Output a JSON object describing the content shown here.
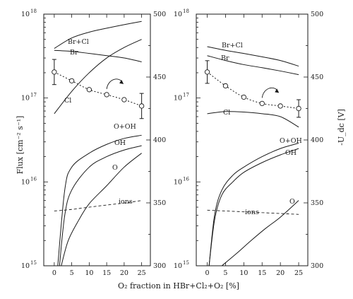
{
  "figure": {
    "xlabel": "O₂ fraction in HBr+Cl₂+O₂ [%]",
    "ylabel_left": "Flux [cm⁻² s⁻¹]",
    "ylabel_right": "-U_dc [V]"
  },
  "chart_data": [
    {
      "type": "line",
      "panel": "left",
      "x_ticks": [
        0,
        5,
        10,
        15,
        20,
        25
      ],
      "xlim": [
        -3,
        27.5
      ],
      "y_left": {
        "scale": "log",
        "range": [
          1000000000000000.0,
          1e+18
        ],
        "tick_labels": [
          "10",
          "10",
          "10",
          "10"
        ],
        "tick_exponents": [
          "15",
          "16",
          "17",
          "18"
        ]
      },
      "y_right": {
        "range": [
          300,
          500
        ],
        "tick_labels": [
          "300",
          "350",
          "400",
          "450",
          "500"
        ]
      },
      "series": [
        {
          "name": "Br+Cl",
          "axis": "left",
          "x": [
            0,
            5,
            10,
            15,
            20,
            25
          ],
          "y": [
            3.9e+17,
            5.2e+17,
            6.1e+17,
            6.8e+17,
            7.5e+17,
            8.2e+17
          ]
        },
        {
          "name": "Br",
          "axis": "left",
          "x": [
            0,
            5,
            10,
            15,
            20,
            25
          ],
          "y": [
            3.7e+17,
            3.6e+17,
            3.4e+17,
            3.2e+17,
            3e+17,
            2.7e+17
          ]
        },
        {
          "name": "Cl",
          "axis": "left",
          "x": [
            0,
            5,
            10,
            15,
            20,
            25
          ],
          "y": [
            6.5e+16,
            1.2e+17,
            2e+17,
            3e+17,
            4e+17,
            5e+17
          ]
        },
        {
          "name": "O+OH",
          "axis": "left",
          "x": [
            1,
            3,
            5,
            10,
            15,
            20,
            25
          ],
          "y": [
            1000000000000000.0,
            8000000000000000.0,
            1.5e+16,
            2.2e+16,
            2.8e+16,
            3.3e+16,
            3.6e+16
          ]
        },
        {
          "name": "OH",
          "axis": "left",
          "x": [
            1.5,
            3,
            5,
            10,
            15,
            20,
            25
          ],
          "y": [
            1000000000000000.0,
            4000000000000000.0,
            8000000000000000.0,
            1.5e+16,
            2e+16,
            2.4e+16,
            2.7e+16
          ]
        },
        {
          "name": "O",
          "axis": "left",
          "x": [
            2,
            4,
            7,
            10,
            15,
            20,
            25
          ],
          "y": [
            1000000000000000.0,
            2000000000000000.0,
            3500000000000000.0,
            5500000000000000.0,
            9000000000000000.0,
            1.5e+16,
            2.2e+16
          ]
        },
        {
          "name": "ions",
          "axis": "left",
          "x": [
            0,
            5,
            10,
            15,
            20,
            25
          ],
          "y": [
            4500000000000000.0,
            4700000000000000.0,
            5000000000000000.0,
            5300000000000000.0,
            5600000000000000.0,
            6000000000000000.0
          ]
        },
        {
          "name": "-U_dc",
          "axis": "right",
          "x": [
            0,
            5,
            10,
            15,
            20,
            25
          ],
          "y": [
            454,
            447,
            440,
            436,
            432,
            427
          ],
          "err": [
            10,
            0,
            0,
            0,
            0,
            10
          ]
        }
      ]
    },
    {
      "type": "line",
      "panel": "right",
      "x_ticks": [
        0,
        5,
        10,
        15,
        20,
        25
      ],
      "xlim": [
        -3,
        27.5
      ],
      "y_left": {
        "scale": "log",
        "range": [
          1000000000000000.0,
          1e+18
        ],
        "tick_labels": [
          "10",
          "10",
          "10",
          "10"
        ],
        "tick_exponents": [
          "15",
          "16",
          "17",
          "18"
        ]
      },
      "y_right": {
        "range": [
          300,
          500
        ],
        "tick_labels": [
          "300",
          "350",
          "400",
          "450",
          "500"
        ]
      },
      "series": [
        {
          "name": "Br+Cl",
          "axis": "left",
          "x": [
            0,
            5,
            10,
            15,
            20,
            25
          ],
          "y": [
            4.1e+17,
            3.7e+17,
            3.4e+17,
            3.1e+17,
            2.8e+17,
            2.4e+17
          ]
        },
        {
          "name": "Br",
          "axis": "left",
          "x": [
            0,
            5,
            10,
            15,
            20,
            25
          ],
          "y": [
            3.2e+17,
            2.8e+17,
            2.5e+17,
            2.3e+17,
            2.1e+17,
            1.9e+17
          ]
        },
        {
          "name": "Cl",
          "axis": "left",
          "x": [
            0,
            5,
            10,
            15,
            20,
            25
          ],
          "y": [
            6.5e+16,
            6.9e+16,
            6.8e+16,
            6.5e+16,
            6e+16,
            4.5e+16
          ]
        },
        {
          "name": "O+OH",
          "axis": "left",
          "x": [
            0.5,
            2,
            4,
            7,
            10,
            15,
            20,
            25
          ],
          "y": [
            1000000000000000.0,
            4000000000000000.0,
            8000000000000000.0,
            1.2e+16,
            1.5e+16,
            2e+16,
            2.5e+16,
            2.9e+16
          ]
        },
        {
          "name": "OH",
          "axis": "left",
          "x": [
            0.5,
            2,
            4,
            7,
            10,
            15,
            20,
            25
          ],
          "y": [
            1000000000000000.0,
            3500000000000000.0,
            7000000000000000.0,
            1e+16,
            1.3e+16,
            1.7e+16,
            2.1e+16,
            2.5e+16
          ]
        },
        {
          "name": "O",
          "axis": "left",
          "x": [
            4,
            8,
            12,
            16,
            20,
            25
          ],
          "y": [
            1000000000000000.0,
            1400000000000000.0,
            2000000000000000.0,
            2800000000000000.0,
            3800000000000000.0,
            6000000000000000.0
          ]
        },
        {
          "name": "ions",
          "axis": "left",
          "x": [
            0,
            5,
            10,
            15,
            20,
            25
          ],
          "y": [
            4600000000000000.0,
            4500000000000000.0,
            4400000000000000.0,
            4300000000000000.0,
            4200000000000000.0,
            4100000000000000.0
          ]
        },
        {
          "name": "-U_dc",
          "axis": "right",
          "x": [
            0,
            5,
            10,
            15,
            20,
            25
          ],
          "y": [
            454,
            443,
            434,
            429,
            427,
            425
          ],
          "err": [
            9,
            0,
            0,
            0,
            0,
            7
          ]
        }
      ]
    }
  ]
}
